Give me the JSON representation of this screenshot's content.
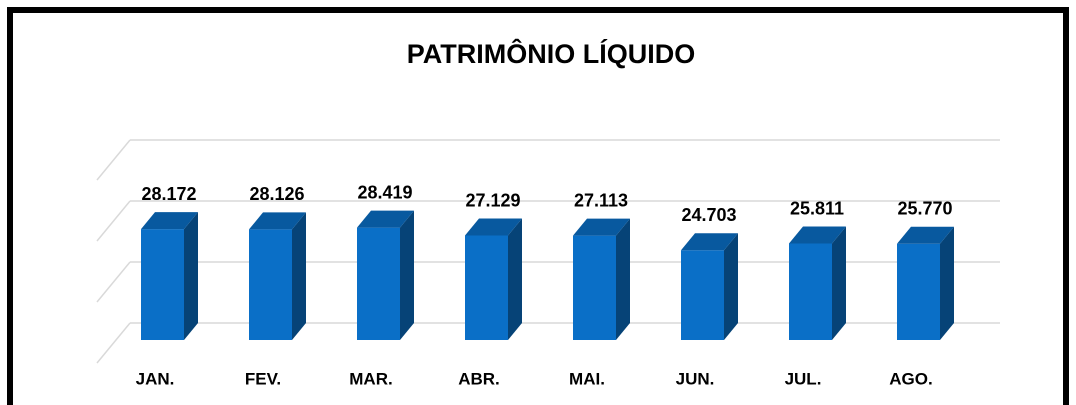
{
  "chart_data": {
    "type": "bar3d",
    "title": "PATRIMÔNIO LÍQUIDO",
    "categories": [
      "JAN.",
      "FEV.",
      "MAR.",
      "ABR.",
      "MAI.",
      "JUN.",
      "JUL.",
      "AGO."
    ],
    "values": [
      28.172,
      28.126,
      28.419,
      27.129,
      27.113,
      24.703,
      25.811,
      25.77
    ],
    "value_labels": [
      "28.172",
      "28.126",
      "28.419",
      "27.129",
      "27.113",
      "24.703",
      "25.811",
      "25.770"
    ],
    "color": "#0a6fc7",
    "ylim": [
      10,
      40
    ],
    "yticks": [
      10,
      20,
      30,
      40
    ],
    "grid": true
  }
}
